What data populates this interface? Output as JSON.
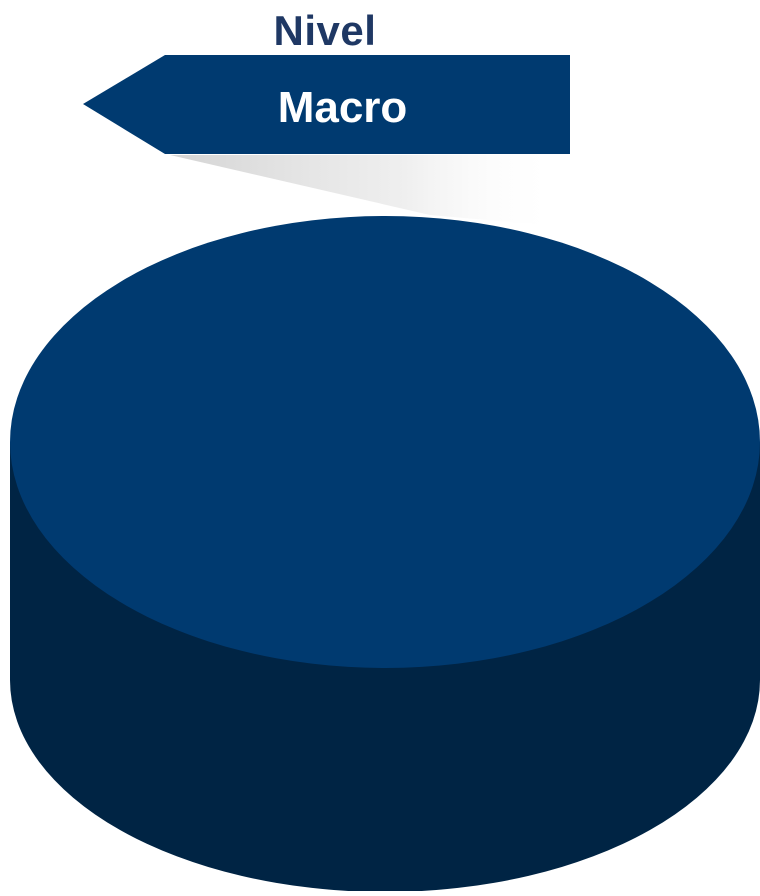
{
  "diagram": {
    "heading": "Nivel",
    "arrow_label": "Macro"
  },
  "colors": {
    "heading_text": "#1f3864",
    "arrow_fill": "#003a70",
    "disk_top": "#003a70",
    "disk_side": "#002444",
    "label_text": "#ffffff"
  }
}
